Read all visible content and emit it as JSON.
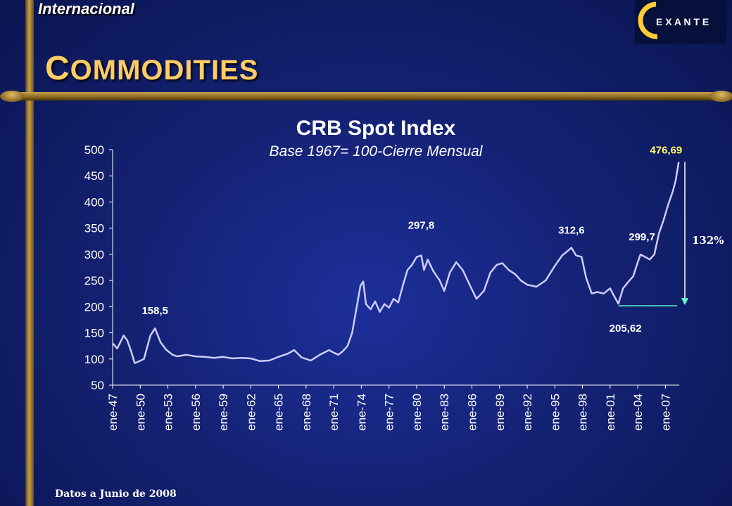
{
  "header": {
    "section": "Internacional",
    "title_first": "C",
    "title_rest": "OMMODITIES",
    "logo_icon": "exante-logo",
    "logo_text": "E X A N T E"
  },
  "footer": {
    "note": "Datos a Junio de 2008"
  },
  "colors": {
    "line": "#ccccff",
    "title_accent": "#ffcc66",
    "highlight": "#ffff66",
    "arrow": "#66ffcc"
  },
  "chart_data": {
    "type": "line",
    "title": "CRB Spot Index",
    "subtitle": "Base 1967= 100-Cierre Mensual",
    "ylim": [
      50,
      500
    ],
    "y_ticks": [
      500,
      450,
      400,
      350,
      300,
      250,
      200,
      150,
      100,
      50
    ],
    "x_ticks": [
      "ene-47",
      "ene-50",
      "ene-53",
      "ene-56",
      "ene-59",
      "ene-62",
      "ene-65",
      "ene-68",
      "ene-71",
      "ene-74",
      "ene-77",
      "ene-80",
      "ene-83",
      "ene-86",
      "ene-89",
      "ene-92",
      "ene-95",
      "ene-98",
      "ene-01",
      "ene-04",
      "ene-07"
    ],
    "grid": false,
    "series": [
      {
        "x": [
          1947.0,
          1947.5,
          1948.2,
          1948.6,
          1949.0,
          1949.4,
          1949.8,
          1950.4,
          1951.1,
          1951.6,
          1952.2,
          1952.8,
          1953.5,
          1954.0,
          1955.0,
          1956.0,
          1957.0,
          1958.0,
          1959.0,
          1960.0,
          1961.0,
          1962.0,
          1963.0,
          1964.0,
          1965.0,
          1966.0,
          1966.7,
          1967.5,
          1968.5,
          1969.5,
          1970.5,
          1971.0,
          1971.5,
          1972.0,
          1972.5,
          1973.0,
          1973.5,
          1973.9,
          1974.2,
          1974.5,
          1975.0,
          1975.5,
          1976.0,
          1976.5,
          1977.0,
          1977.5,
          1978.0,
          1978.5,
          1979.0,
          1979.5,
          1980.0,
          1980.5,
          1980.8,
          1981.2,
          1981.8,
          1982.5,
          1983.0,
          1983.6,
          1984.3,
          1985.0,
          1985.8,
          1986.5,
          1987.3,
          1988.0,
          1988.7,
          1989.3,
          1990.0,
          1990.7,
          1991.3,
          1992.0,
          1993.0,
          1994.0,
          1995.0,
          1995.8,
          1996.3,
          1996.8,
          1997.3,
          1997.9,
          1998.4,
          1999.0,
          1999.6,
          2000.3,
          2001.0,
          2001.5,
          2001.9,
          2002.4,
          2003.0,
          2003.5,
          2004.0,
          2004.3,
          2004.8,
          2005.3,
          2005.8,
          2006.3,
          2006.8,
          2007.3,
          2007.8,
          2008.1,
          2008.45
        ],
        "y": [
          130,
          120,
          145,
          135,
          115,
          92,
          95,
          100,
          145,
          158.5,
          132,
          118,
          108,
          105,
          108,
          105,
          104,
          102,
          104,
          101,
          102,
          101,
          96,
          97,
          104,
          110,
          117,
          103,
          97,
          108,
          117,
          112,
          108,
          115,
          125,
          150,
          200,
          240,
          248,
          205,
          195,
          210,
          190,
          205,
          198,
          215,
          208,
          240,
          270,
          280,
          295,
          298,
          270,
          290,
          268,
          250,
          230,
          265,
          285,
          270,
          240,
          215,
          230,
          265,
          280,
          283,
          270,
          262,
          250,
          242,
          238,
          250,
          278,
          298,
          305,
          312.6,
          298,
          295,
          255,
          225,
          228,
          225,
          235,
          218,
          205.62,
          235,
          248,
          258,
          285,
          299.7,
          295,
          290,
          300,
          340,
          365,
          395,
          420,
          440,
          476.69
        ]
      }
    ],
    "annotations": [
      {
        "label": "158,5",
        "x": 1951.6,
        "y": 158.5
      },
      {
        "label": "297,8",
        "x": 1980.5,
        "y": 297.8
      },
      {
        "label": "312,6",
        "x": 1996.8,
        "y": 312.6
      },
      {
        "label": "299,7",
        "x": 2004.3,
        "y": 299.7
      },
      {
        "label": "205,62",
        "x": 2001.9,
        "y": 205.62
      },
      {
        "label": "476,69",
        "x": 2008.45,
        "y": 476.69
      }
    ],
    "change_label": "132%"
  }
}
